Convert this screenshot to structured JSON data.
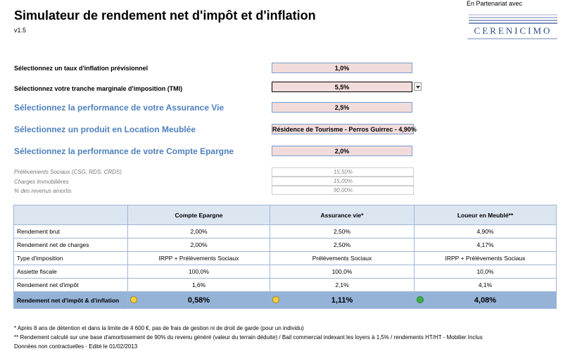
{
  "header": {
    "title": "Simulateur de rendement net d'impôt et d'inflation",
    "version": "v1.5",
    "partner_label": "En Partenariat avec",
    "logo_text": "CERENICIMO"
  },
  "inputs": {
    "inflation_label": "Sélectionnez un taux d'inflation prévisionnel",
    "inflation_value": "1,0%",
    "tmi_label": "Sélectionnez votre tranche marginale d'imposition (TMI)",
    "tmi_value": "5,5%",
    "av_label": "Sélectionnez la performance de votre Assurance Vie",
    "av_value": "2,5%",
    "lm_label": "Sélectionnez un produit en Location Meublée",
    "lm_value": "Résidence de Tourisme - Perros Guirrec - 4,90%",
    "ce_label": "Sélectionnez la performance de votre Compte Epargne",
    "ce_value": "2,0%"
  },
  "info": [
    {
      "label": "Prélèvements Sociaux (CSG, RDS, CRDS)",
      "value": "15,50%"
    },
    {
      "label": "Charges Immobilières",
      "value": "15,00%"
    },
    {
      "label": "% des revenus amortis",
      "value": "90,00%"
    }
  ],
  "table": {
    "headers": [
      "Compte Epargne",
      "Assurance vie*",
      "Loueur en Meublé**"
    ],
    "rows": [
      {
        "label": "Rendement brut",
        "values": [
          "2,00%",
          "2,50%",
          "4,90%"
        ],
        "align": [
          "c",
          "c",
          "c"
        ]
      },
      {
        "label": "Rendement net de charges",
        "values": [
          "2,00%",
          "2,50%",
          "4,17%"
        ],
        "align": [
          "c",
          "c",
          "c"
        ]
      },
      {
        "label": "Type d'imposition",
        "values": [
          "IRPP + Prélèvements Sociaux",
          "Prélèvements Sociaux",
          "IRPP + Prélèvements Sociaux"
        ],
        "align": [
          "c",
          "c",
          "c"
        ]
      },
      {
        "label": "Assiette fiscale",
        "values": [
          "100,0%",
          "100,0%",
          "10,0%"
        ],
        "align": [
          "c",
          "c",
          "c"
        ]
      },
      {
        "label": "Rendement net d'impôt",
        "values": [
          "1,6%",
          "2,1%",
          "4,1%"
        ],
        "align": [
          "c",
          "c",
          "c"
        ]
      }
    ],
    "final": {
      "label": "Rendement net d'impôt & d'inflation",
      "values": [
        "0,58%",
        "1,11%",
        "4,08%"
      ],
      "indicators": [
        "yellow",
        "yellow",
        "green"
      ]
    }
  },
  "notes": [
    "* Après 8 ans de détention et dans la limite de 4 600 €, pas de frais de gestion ni de droit de garde (pour un individu)",
    "** Rendement calculé sur une base d'amortissement de 90% du revenu généré (valeur du terrain déduite) / Bail commercial indexant les loyers à 1,5% / rendements HT/HT - Mobilier Inclus",
    "Données non contractuelles - Edité le 01/02/2013"
  ],
  "colors": {
    "accent_blue": "#4f81bd",
    "input_fill": "#f2dcdb",
    "header_fill": "#dce6f1",
    "final_fill": "#95b3d7"
  }
}
